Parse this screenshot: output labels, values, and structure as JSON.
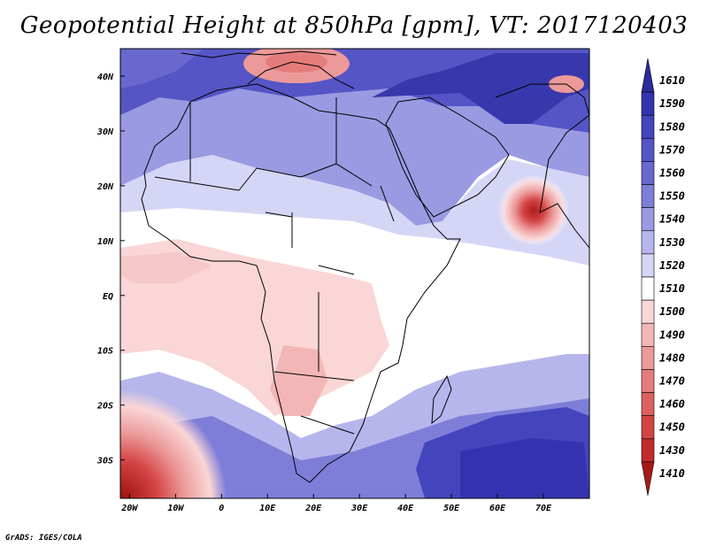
{
  "title": "Geopotential Height at 850hPa [gpm], VT: 2017120403",
  "credit": "GrADS: IGES/COLA",
  "map": {
    "region": "Africa and Arabian Peninsula",
    "lat_labels": [
      "40N",
      "30N",
      "20N",
      "10N",
      "EQ",
      "10S",
      "20S",
      "30S"
    ],
    "lat_values": [
      40,
      30,
      20,
      10,
      0,
      -10,
      -20,
      -30
    ],
    "lon_labels": [
      "20W",
      "10W",
      "0",
      "10E",
      "20E",
      "30E",
      "40E",
      "50E",
      "60E",
      "70E"
    ],
    "lon_values": [
      -20,
      -10,
      0,
      10,
      20,
      30,
      40,
      50,
      60,
      70
    ],
    "lon_range": [
      -22,
      80
    ],
    "lat_range": [
      -37,
      45
    ]
  },
  "colorbar": {
    "levels": [
      "1610",
      "1590",
      "1580",
      "1570",
      "1560",
      "1550",
      "1540",
      "1530",
      "1520",
      "1510",
      "1500",
      "1490",
      "1480",
      "1470",
      "1460",
      "1450",
      "1430",
      "1410"
    ],
    "colors": [
      "#2a2a9e",
      "#3333b0",
      "#4444bc",
      "#5555c6",
      "#6868cf",
      "#7e7ed9",
      "#9a9ae2",
      "#b6b6ec",
      "#d5d5f5",
      "#ffffff",
      "#fad6d6",
      "#f3b6b6",
      "#ec9999",
      "#e57c7c",
      "#dd6060",
      "#d44444",
      "#c32a2a",
      "#a81818"
    ]
  }
}
